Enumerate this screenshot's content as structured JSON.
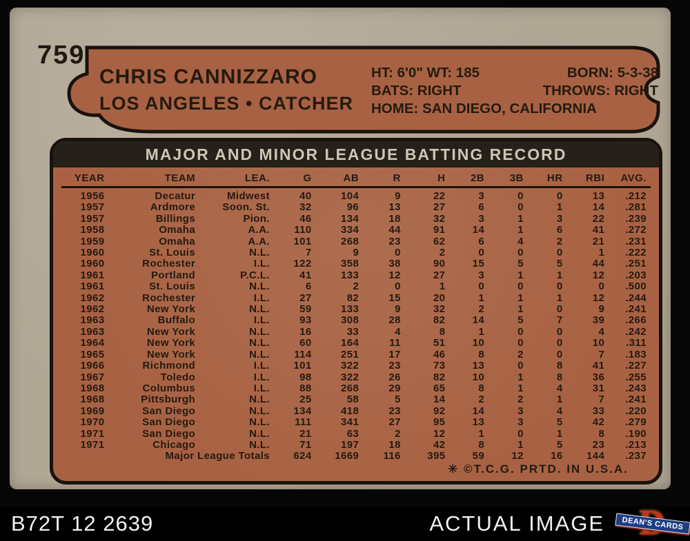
{
  "card": {
    "number": "759",
    "player_name": "CHRIS CANNIZZARO",
    "team_position": "LOS ANGELES • CATCHER",
    "bio": {
      "ht_wt": "HT: 6'0\" WT: 185",
      "born": "BORN: 5-3-38",
      "bats": "BATS: RIGHT",
      "throws": "THROWS: RIGHT",
      "home": "HOME: SAN DIEGO, CALIFORNIA"
    },
    "table_title": "MAJOR AND MINOR LEAGUE BATTING RECORD",
    "footer_note": "✳ ©T.C.G. PRTD. IN U.S.A.",
    "batting_record": {
      "headers": [
        "YEAR",
        "TEAM",
        "LEA.",
        "G",
        "AB",
        "R",
        "H",
        "2B",
        "3B",
        "HR",
        "RBI",
        "AVG."
      ],
      "rows": [
        [
          "1956",
          "Decatur",
          "Midwest",
          "40",
          "104",
          "9",
          "22",
          "3",
          "0",
          "0",
          "13",
          ".212"
        ],
        [
          "1957",
          "Ardmore",
          "Soon. St.",
          "32",
          "96",
          "13",
          "27",
          "6",
          "0",
          "1",
          "14",
          ".281"
        ],
        [
          "1957",
          "Billings",
          "Pion.",
          "46",
          "134",
          "18",
          "32",
          "3",
          "1",
          "3",
          "22",
          ".239"
        ],
        [
          "1958",
          "Omaha",
          "A.A.",
          "110",
          "334",
          "44",
          "91",
          "14",
          "1",
          "6",
          "41",
          ".272"
        ],
        [
          "1959",
          "Omaha",
          "A.A.",
          "101",
          "268",
          "23",
          "62",
          "6",
          "4",
          "2",
          "21",
          ".231"
        ],
        [
          "1960",
          "St. Louis",
          "N.L.",
          "7",
          "9",
          "0",
          "2",
          "0",
          "0",
          "0",
          "1",
          ".222"
        ],
        [
          "1960",
          "Rochester",
          "I.L.",
          "122",
          "358",
          "38",
          "90",
          "15",
          "5",
          "5",
          "44",
          ".251"
        ],
        [
          "1961",
          "Portland",
          "P.C.L.",
          "41",
          "133",
          "12",
          "27",
          "3",
          "1",
          "1",
          "12",
          ".203"
        ],
        [
          "1961",
          "St. Louis",
          "N.L.",
          "6",
          "2",
          "0",
          "1",
          "0",
          "0",
          "0",
          "0",
          ".500"
        ],
        [
          "1962",
          "Rochester",
          "I.L.",
          "27",
          "82",
          "15",
          "20",
          "1",
          "1",
          "1",
          "12",
          ".244"
        ],
        [
          "1962",
          "New York",
          "N.L.",
          "59",
          "133",
          "9",
          "32",
          "2",
          "1",
          "0",
          "9",
          ".241"
        ],
        [
          "1963",
          "Buffalo",
          "I.L.",
          "93",
          "308",
          "28",
          "82",
          "14",
          "5",
          "7",
          "39",
          ".266"
        ],
        [
          "1963",
          "New York",
          "N.L.",
          "16",
          "33",
          "4",
          "8",
          "1",
          "0",
          "0",
          "4",
          ".242"
        ],
        [
          "1964",
          "New York",
          "N.L.",
          "60",
          "164",
          "11",
          "51",
          "10",
          "0",
          "0",
          "10",
          ".311"
        ],
        [
          "1965",
          "New York",
          "N.L.",
          "114",
          "251",
          "17",
          "46",
          "8",
          "2",
          "0",
          "7",
          ".183"
        ],
        [
          "1966",
          "Richmond",
          "I.L.",
          "101",
          "322",
          "23",
          "73",
          "13",
          "0",
          "8",
          "41",
          ".227"
        ],
        [
          "1967",
          "Toledo",
          "I.L.",
          "98",
          "322",
          "26",
          "82",
          "10",
          "1",
          "8",
          "36",
          ".255"
        ],
        [
          "1968",
          "Columbus",
          "I.L.",
          "88",
          "268",
          "29",
          "65",
          "8",
          "1",
          "4",
          "31",
          ".243"
        ],
        [
          "1968",
          "Pittsburgh",
          "N.L.",
          "25",
          "58",
          "5",
          "14",
          "2",
          "2",
          "1",
          "7",
          ".241"
        ],
        [
          "1969",
          "San Diego",
          "N.L.",
          "134",
          "418",
          "23",
          "92",
          "14",
          "3",
          "4",
          "33",
          ".220"
        ],
        [
          "1970",
          "San Diego",
          "N.L.",
          "111",
          "341",
          "27",
          "95",
          "13",
          "3",
          "5",
          "42",
          ".279"
        ],
        [
          "1971",
          "San Diego",
          "N.L.",
          "21",
          "63",
          "2",
          "12",
          "1",
          "0",
          "1",
          "8",
          ".190"
        ],
        [
          "1971",
          "Chicago",
          "N.L.",
          "71",
          "197",
          "18",
          "42",
          "8",
          "1",
          "5",
          "23",
          ".213"
        ]
      ],
      "totals_label": "Major League Totals",
      "totals": [
        "624",
        "1669",
        "116",
        "395",
        "59",
        "12",
        "16",
        "144",
        ".237"
      ]
    }
  },
  "caption_bar": {
    "catalog_code": "B72T 12 2639",
    "label": "ACTUAL IMAGE",
    "logo": {
      "letter": "D",
      "text": "DEAN'S CARDS"
    }
  },
  "colors": {
    "background": "#060606",
    "cardboard": "#b1a795",
    "panel_orange": "#a86243",
    "ink": "#241a10",
    "band_bg": "#25201a",
    "band_text": "#cdc6b6",
    "caption_text": "#f2f2f2",
    "logo_red": "#c1331d",
    "ribbon_blue": "#1d3e85"
  }
}
